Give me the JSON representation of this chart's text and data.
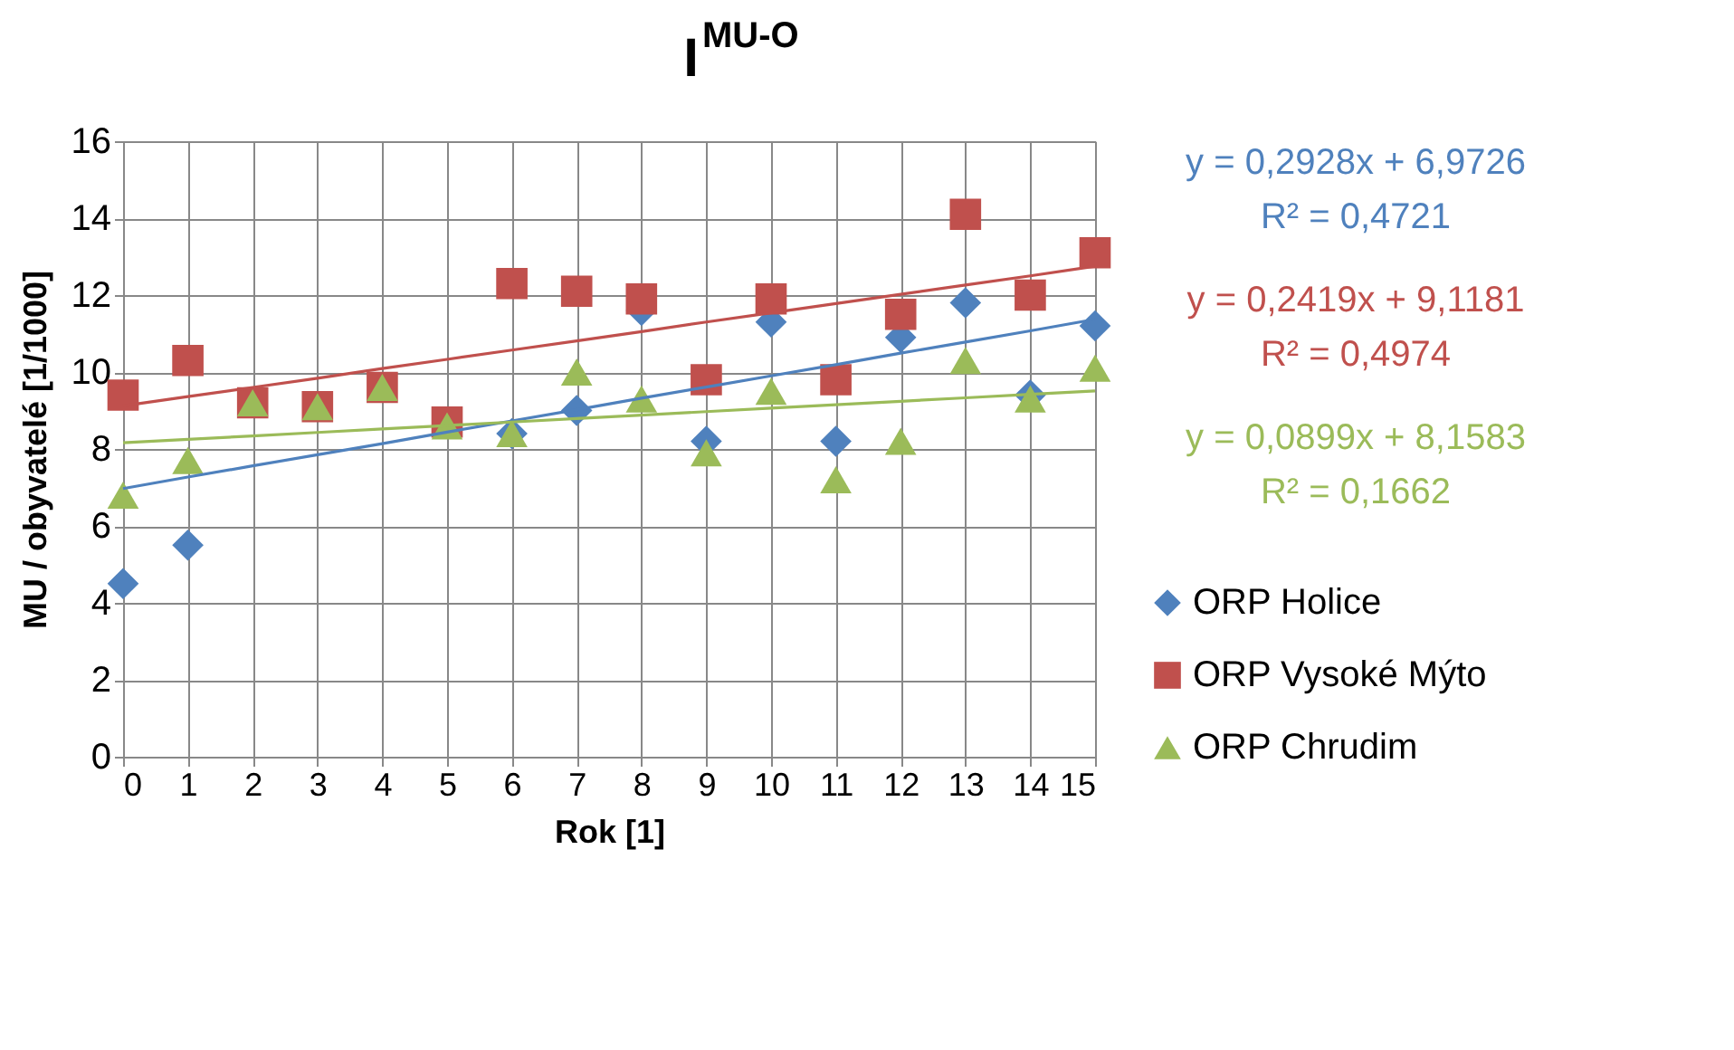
{
  "chart_data": {
    "type": "scatter",
    "title": "I$^{MU-O}$",
    "xlabel": "Rok [1]",
    "ylabel": "MU / obyvatelé [1/1000]",
    "x": [
      0,
      1,
      2,
      3,
      4,
      5,
      6,
      7,
      8,
      9,
      10,
      11,
      12,
      13,
      14,
      15
    ],
    "series": [
      {
        "name": "ORP Holice",
        "color": "#4f81bd",
        "marker": "diamond",
        "values": [
          4.5,
          5.5,
          null,
          null,
          null,
          null,
          8.4,
          9.0,
          11.6,
          8.2,
          11.3,
          8.2,
          10.9,
          11.8,
          9.4,
          11.2
        ]
      },
      {
        "name": "ORP Vysoké Mýto",
        "color": "#c0504d",
        "marker": "square",
        "values": [
          9.4,
          10.3,
          9.2,
          9.1,
          9.6,
          8.7,
          12.3,
          12.1,
          11.9,
          9.8,
          11.9,
          9.8,
          11.5,
          14.1,
          12.0,
          13.1
        ]
      },
      {
        "name": "ORP Chrudim",
        "color": "#9bbb59",
        "marker": "triangle",
        "values": [
          6.8,
          7.7,
          9.2,
          9.1,
          9.6,
          8.6,
          8.4,
          10.0,
          9.3,
          7.9,
          9.5,
          7.2,
          8.2,
          10.3,
          9.3,
          10.1
        ]
      },
      {
        "type": "line",
        "color": "#4f81bd",
        "values": [
          6.97,
          7.27,
          7.56,
          7.85,
          8.14,
          8.44,
          8.73,
          9.02,
          9.32,
          9.61,
          9.9,
          10.19,
          10.49,
          10.78,
          11.07,
          11.37
        ]
      },
      {
        "type": "line",
        "color": "#c0504d",
        "values": [
          9.12,
          9.36,
          9.6,
          9.84,
          10.09,
          10.33,
          10.57,
          10.81,
          11.05,
          11.3,
          11.54,
          11.78,
          12.02,
          12.26,
          12.5,
          12.75
        ]
      },
      {
        "type": "line",
        "color": "#9bbb59",
        "values": [
          8.16,
          8.25,
          8.34,
          8.43,
          8.52,
          8.61,
          8.7,
          8.79,
          8.88,
          8.97,
          9.06,
          9.15,
          9.24,
          9.33,
          9.42,
          9.51
        ]
      }
    ],
    "annotations": [
      "y = 0,2928x + 6,9726",
      "R² = 0,4721",
      "y = 0,2419x + 9,1181",
      "R² = 0,4974",
      "y = 0,0899x + 8,1583",
      "R² = 0,1662"
    ],
    "xlim": [
      0,
      15
    ],
    "xticks": [
      0,
      1,
      2,
      3,
      4,
      5,
      6,
      7,
      8,
      9,
      10,
      11,
      12,
      13,
      14,
      15
    ],
    "ylim": [
      0,
      16
    ],
    "yticks": [
      0,
      2,
      4,
      6,
      8,
      10,
      12,
      14,
      16
    ],
    "grid": true,
    "legend": "right"
  }
}
